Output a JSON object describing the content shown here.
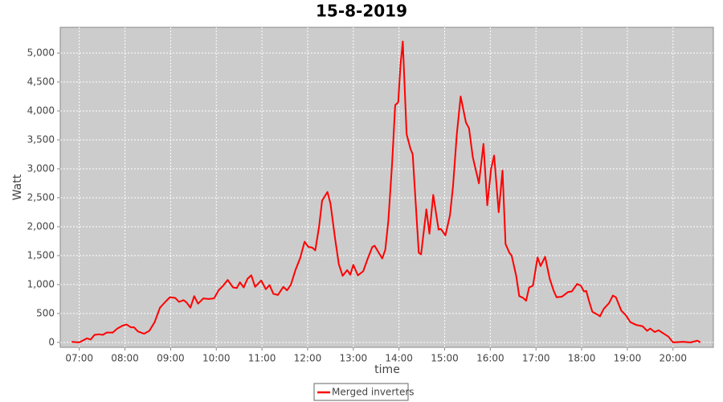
{
  "chart_data": {
    "type": "line",
    "title": "15-8-2019",
    "x_label": "time",
    "y_label": "Watt",
    "x": [
      "06:50",
      "07:00",
      "07:10",
      "07:15",
      "07:20",
      "07:26",
      "07:31",
      "07:36",
      "07:44",
      "07:50",
      "07:57",
      "08:02",
      "08:08",
      "08:12",
      "08:17",
      "08:25",
      "08:32",
      "08:39",
      "08:46",
      "08:53",
      "08:59",
      "09:06",
      "09:11",
      "09:17",
      "09:21",
      "09:26",
      "09:31",
      "09:36",
      "09:43",
      "09:50",
      "09:57",
      "10:03",
      "10:09",
      "10:15",
      "10:22",
      "10:27",
      "10:31",
      "10:36",
      "10:41",
      "10:46",
      "10:51",
      "10:59",
      "11:05",
      "11:10",
      "11:15",
      "11:21",
      "11:28",
      "11:33",
      "11:38",
      "11:44",
      "11:50",
      "11:56",
      "12:01",
      "12:06",
      "12:10",
      "12:15",
      "12:19",
      "12:26",
      "12:30",
      "12:36",
      "12:41",
      "12:46",
      "12:52",
      "12:56",
      "13:00",
      "13:06",
      "13:13",
      "13:19",
      "13:25",
      "13:28",
      "13:33",
      "13:38",
      "13:42",
      "13:46",
      "13:51",
      "13:55",
      "13:59",
      "14:02",
      "14:05",
      "14:10",
      "14:15",
      "14:18",
      "14:22",
      "14:26",
      "14:29",
      "14:36",
      "14:40",
      "14:45",
      "14:52",
      "14:55",
      "15:01",
      "15:07",
      "15:11",
      "15:16",
      "15:21",
      "15:28",
      "15:32",
      "15:37",
      "15:45",
      "15:51",
      "15:56",
      "16:01",
      "16:05",
      "16:11",
      "16:16",
      "16:20",
      "16:25",
      "16:28",
      "16:34",
      "16:38",
      "16:43",
      "16:47",
      "16:51",
      "16:56",
      "17:02",
      "17:06",
      "17:12",
      "17:18",
      "17:23",
      "17:27",
      "17:34",
      "17:42",
      "17:47",
      "17:54",
      "17:59",
      "18:03",
      "18:06",
      "18:10",
      "18:14",
      "18:21",
      "18:24",
      "18:29",
      "18:36",
      "18:41",
      "18:45",
      "18:52",
      "18:58",
      "19:04",
      "19:12",
      "19:20",
      "19:26",
      "19:30",
      "19:36",
      "19:41",
      "19:48",
      "19:54",
      "20:00",
      "20:13",
      "20:23",
      "20:32",
      "20:36"
    ],
    "series": [
      {
        "name": "Merged inverters",
        "color": "#ff0000",
        "values": [
          10,
          0,
          70,
          50,
          130,
          140,
          130,
          170,
          170,
          240,
          290,
          310,
          260,
          260,
          190,
          150,
          200,
          350,
          600,
          700,
          780,
          770,
          700,
          730,
          690,
          600,
          800,
          670,
          760,
          750,
          760,
          900,
          980,
          1080,
          950,
          940,
          1040,
          950,
          1100,
          1160,
          960,
          1070,
          920,
          990,
          840,
          820,
          960,
          900,
          1000,
          1250,
          1450,
          1740,
          1650,
          1640,
          1590,
          2000,
          2450,
          2600,
          2400,
          1800,
          1350,
          1150,
          1250,
          1170,
          1340,
          1160,
          1230,
          1450,
          1650,
          1670,
          1560,
          1450,
          1600,
          2100,
          3100,
          4100,
          4150,
          4800,
          5200,
          3600,
          3350,
          3250,
          2400,
          1550,
          1520,
          2300,
          1880,
          2550,
          1950,
          1960,
          1850,
          2200,
          2700,
          3600,
          4250,
          3800,
          3700,
          3200,
          2750,
          3430,
          2370,
          3000,
          3230,
          2250,
          2970,
          1700,
          1550,
          1500,
          1150,
          800,
          770,
          720,
          950,
          980,
          1470,
          1320,
          1480,
          1100,
          900,
          780,
          790,
          870,
          880,
          1010,
          980,
          880,
          890,
          700,
          530,
          480,
          450,
          580,
          680,
          810,
          780,
          550,
          470,
          350,
          300,
          280,
          200,
          240,
          180,
          210,
          150,
          100,
          0,
          10,
          0,
          30,
          0
        ]
      }
    ],
    "xlim": [
      "06:35",
      "20:53"
    ],
    "xticks": [
      "07:00",
      "08:00",
      "09:00",
      "10:00",
      "11:00",
      "12:00",
      "13:00",
      "14:00",
      "15:00",
      "16:00",
      "17:00",
      "18:00",
      "19:00",
      "20:00"
    ],
    "ylim": [
      -85,
      5445
    ],
    "yticks": [
      0,
      500,
      {
        "value": 1000,
        "label": "1,000"
      },
      {
        "value": 1500,
        "label": "1,500"
      },
      {
        "value": 2000,
        "label": "2,000"
      },
      {
        "value": 2500,
        "label": "2,500"
      },
      {
        "value": 3000,
        "label": "3,000"
      },
      {
        "value": 3500,
        "label": "3,500"
      },
      {
        "value": 4000,
        "label": "4,000"
      },
      {
        "value": 4500,
        "label": "4,500"
      },
      {
        "value": 5000,
        "label": "5,000"
      }
    ],
    "grid": true
  }
}
